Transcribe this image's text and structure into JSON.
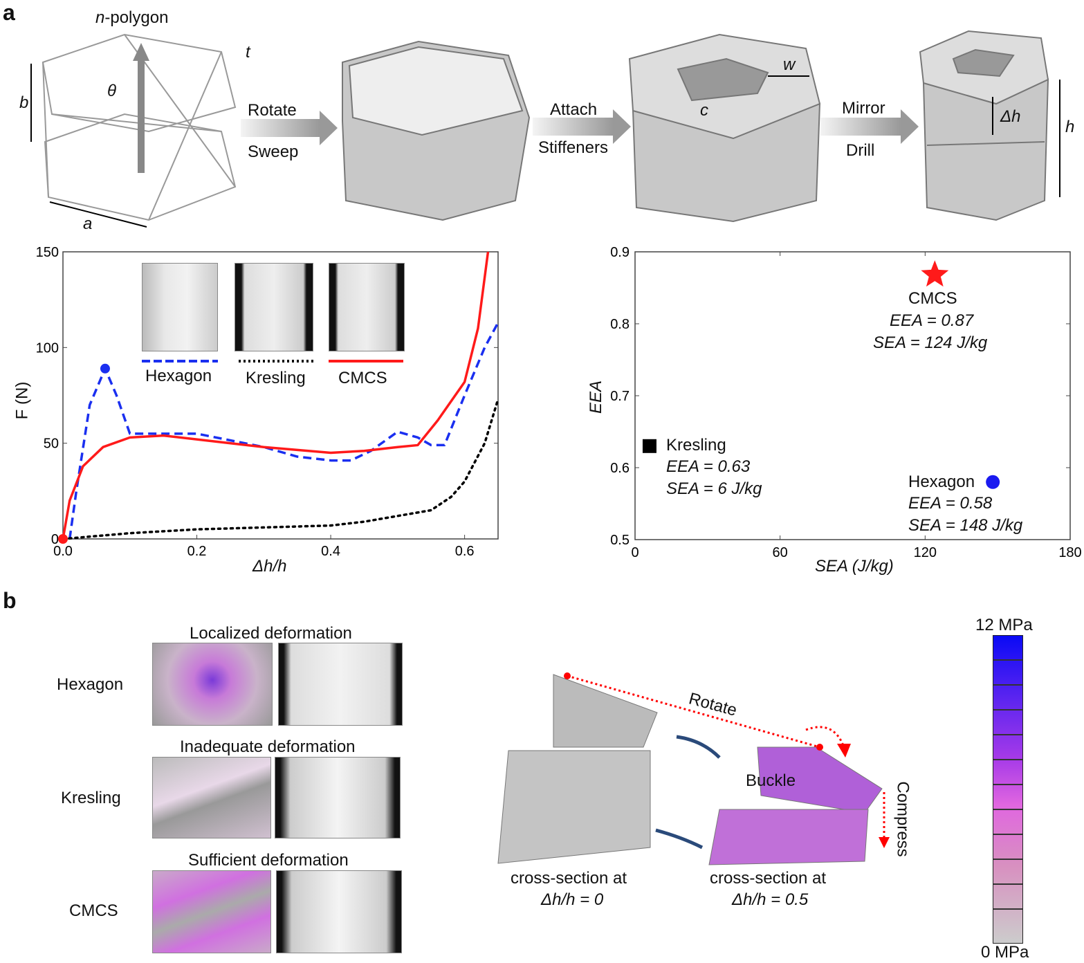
{
  "panel_a": {
    "label": "a",
    "polygon_label": "n-polygon",
    "n_letter": "n",
    "polygon_suffix": "-polygon",
    "dims": {
      "t": "t",
      "b": "b",
      "theta": "θ",
      "a": "a",
      "w": "w",
      "c": "c",
      "dh": "Δh",
      "h": "h"
    },
    "steps": [
      {
        "top": "Rotate",
        "bottom": "Sweep"
      },
      {
        "top": "Attach",
        "bottom": "Stiffeners"
      },
      {
        "top": "Mirror",
        "bottom": "Drill"
      }
    ]
  },
  "panel_b": {
    "label": "b",
    "rows": [
      {
        "name": "Hexagon",
        "title": "Localized deformation"
      },
      {
        "name": "Kresling",
        "title": "Inadequate deformation"
      },
      {
        "name": "CMCS",
        "title": "Sufficient deformation"
      }
    ],
    "rotate": "Rotate",
    "buckle": "Buckle",
    "compress": "Compress",
    "cs0_line1": "cross-section at",
    "cs0_line2": "Δh/h = 0",
    "cs1_line1": "cross-section at",
    "cs1_line2": "Δh/h = 0.5",
    "colorbar": {
      "max": "12 MPa",
      "min": "0 MPa",
      "colors": [
        "#0a0af5",
        "#a63ae8",
        "#e066e0",
        "#cccccc"
      ]
    }
  },
  "chart_data": [
    {
      "type": "line",
      "xlabel": "Δh/h",
      "ylabel": "F (N)",
      "xlim": [
        0,
        0.65
      ],
      "ylim": [
        0,
        150
      ],
      "xticks": [
        "0.0",
        "0.2",
        "0.4",
        "0.6"
      ],
      "yticks": [
        "0",
        "50",
        "100",
        "150"
      ],
      "legend": "top-center",
      "series": [
        {
          "name": "Hexagon",
          "color": "#1a2ff0",
          "style": "dashed",
          "x": [
            0.01,
            0.02,
            0.04,
            0.063,
            0.08,
            0.1,
            0.15,
            0.2,
            0.3,
            0.35,
            0.4,
            0.43,
            0.46,
            0.5,
            0.53,
            0.55,
            0.57,
            0.6,
            0.63,
            0.65
          ],
          "y": [
            0,
            25,
            70,
            89,
            75,
            55,
            55,
            55,
            48,
            43,
            41,
            41,
            46,
            56,
            53,
            49,
            49,
            75,
            100,
            113
          ],
          "marker": {
            "x": 0.063,
            "y": 89
          }
        },
        {
          "name": "Kresling",
          "color": "#000000",
          "style": "dotted",
          "x": [
            0,
            0.1,
            0.2,
            0.3,
            0.4,
            0.45,
            0.5,
            0.55,
            0.58,
            0.6,
            0.63,
            0.65
          ],
          "y": [
            0,
            3,
            5,
            6,
            7,
            9,
            12,
            15,
            22,
            30,
            50,
            73
          ]
        },
        {
          "name": "CMCS",
          "color": "#ff1a1a",
          "style": "solid",
          "x": [
            0,
            0.01,
            0.03,
            0.06,
            0.1,
            0.15,
            0.2,
            0.3,
            0.4,
            0.45,
            0.5,
            0.53,
            0.56,
            0.6,
            0.62,
            0.635
          ],
          "y": [
            0,
            20,
            38,
            48,
            53,
            54,
            52,
            48,
            45,
            46,
            48,
            49,
            62,
            82,
            110,
            150
          ],
          "marker": {
            "x": 0,
            "y": 0
          }
        }
      ]
    },
    {
      "type": "scatter",
      "xlabel": "SEA (J/kg)",
      "ylabel": "EEA",
      "xlim": [
        0,
        180
      ],
      "ylim": [
        0.5,
        0.9
      ],
      "xticks": [
        "0",
        "60",
        "120",
        "180"
      ],
      "yticks": [
        "0.5",
        "0.6",
        "0.7",
        "0.8",
        "0.9"
      ],
      "points": [
        {
          "name": "CMCS",
          "x": 124,
          "y": 0.87,
          "marker": "star",
          "color": "#ff1a1a",
          "eea": "EEA = 0.87",
          "sea": "SEA = 124 J/kg"
        },
        {
          "name": "Kresling",
          "x": 6,
          "y": 0.63,
          "marker": "square",
          "color": "#000000",
          "eea": "EEA = 0.63",
          "sea": "SEA = 6 J/kg"
        },
        {
          "name": "Hexagon",
          "x": 148,
          "y": 0.58,
          "marker": "circle",
          "color": "#1a1af0",
          "eea": "EEA = 0.58",
          "sea": "SEA = 148 J/kg"
        }
      ]
    }
  ]
}
